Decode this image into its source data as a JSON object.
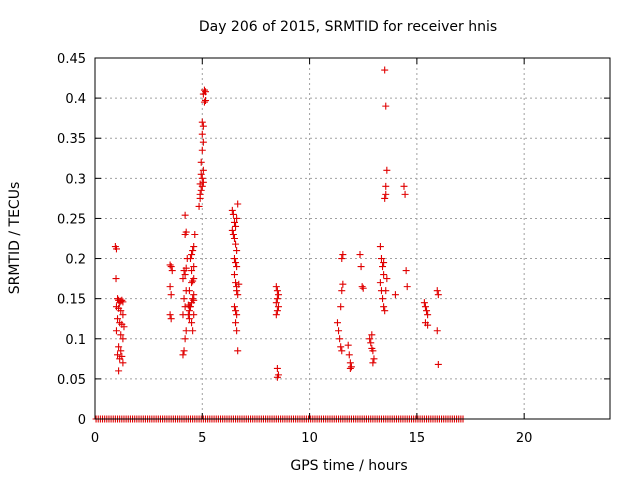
{
  "chart_data": {
    "type": "scatter",
    "title": "Day 206 of 2015, SRMTID for receiver hnis",
    "xlabel": "GPS time / hours",
    "ylabel": "SRMTID / TECUs",
    "xlim": [
      0,
      24
    ],
    "ylim": [
      0,
      0.45
    ],
    "xticks": [
      0,
      5,
      10,
      15,
      20
    ],
    "yticks": [
      0,
      0.05,
      0.1,
      0.15,
      0.2,
      0.25,
      0.3,
      0.35,
      0.4,
      0.45
    ],
    "xtick_labels": [
      "0",
      "5",
      "10",
      "15",
      "20"
    ],
    "ytick_labels": [
      "0",
      "0.05",
      "0.1",
      "0.15",
      "0.2",
      "0.25",
      "0.3",
      "0.35",
      "0.4",
      "0.45"
    ],
    "grid": true,
    "marker": "plus",
    "color": "#e00000",
    "zero_baseline": {
      "x_start": 0.05,
      "x_end": 17.15,
      "step": 0.1,
      "y": 0
    },
    "points": [
      [
        0.95,
        0.215
      ],
      [
        1.0,
        0.212
      ],
      [
        0.98,
        0.175
      ],
      [
        1.05,
        0.15
      ],
      [
        1.1,
        0.148
      ],
      [
        1.2,
        0.147
      ],
      [
        1.15,
        0.145
      ],
      [
        1.25,
        0.148
      ],
      [
        1.3,
        0.146
      ],
      [
        1.0,
        0.14
      ],
      [
        1.1,
        0.138
      ],
      [
        1.2,
        0.135
      ],
      [
        1.3,
        0.13
      ],
      [
        1.05,
        0.125
      ],
      [
        1.15,
        0.12
      ],
      [
        1.25,
        0.118
      ],
      [
        1.35,
        0.115
      ],
      [
        1.0,
        0.11
      ],
      [
        1.2,
        0.105
      ],
      [
        1.3,
        0.1
      ],
      [
        1.1,
        0.09
      ],
      [
        1.2,
        0.085
      ],
      [
        1.05,
        0.08
      ],
      [
        1.25,
        0.078
      ],
      [
        1.15,
        0.075
      ],
      [
        1.3,
        0.07
      ],
      [
        1.1,
        0.06
      ],
      [
        3.5,
        0.192
      ],
      [
        3.55,
        0.19
      ],
      [
        3.6,
        0.185
      ],
      [
        3.5,
        0.165
      ],
      [
        3.55,
        0.155
      ],
      [
        3.5,
        0.13
      ],
      [
        3.55,
        0.125
      ],
      [
        4.1,
        0.08
      ],
      [
        4.15,
        0.085
      ],
      [
        4.2,
        0.1
      ],
      [
        4.25,
        0.11
      ],
      [
        4.1,
        0.13
      ],
      [
        4.2,
        0.14
      ],
      [
        4.15,
        0.15
      ],
      [
        4.25,
        0.16
      ],
      [
        4.1,
        0.175
      ],
      [
        4.2,
        0.18
      ],
      [
        4.15,
        0.185
      ],
      [
        4.25,
        0.188
      ],
      [
        4.3,
        0.2
      ],
      [
        4.2,
        0.23
      ],
      [
        4.25,
        0.233
      ],
      [
        4.2,
        0.254
      ],
      [
        4.35,
        0.13
      ],
      [
        4.4,
        0.135
      ],
      [
        4.45,
        0.14
      ],
      [
        4.5,
        0.145
      ],
      [
        4.55,
        0.15
      ],
      [
        4.6,
        0.155
      ],
      [
        4.4,
        0.16
      ],
      [
        4.5,
        0.17
      ],
      [
        4.55,
        0.172
      ],
      [
        4.6,
        0.175
      ],
      [
        4.45,
        0.2
      ],
      [
        4.5,
        0.205
      ],
      [
        4.55,
        0.21
      ],
      [
        4.6,
        0.215
      ],
      [
        4.4,
        0.125
      ],
      [
        4.6,
        0.13
      ],
      [
        4.5,
        0.12
      ],
      [
        4.55,
        0.11
      ],
      [
        4.35,
        0.142
      ],
      [
        4.6,
        0.148
      ],
      [
        4.65,
        0.23
      ],
      [
        4.5,
        0.185
      ],
      [
        4.6,
        0.19
      ],
      [
        4.4,
        0.14
      ],
      [
        4.85,
        0.265
      ],
      [
        4.9,
        0.275
      ],
      [
        4.95,
        0.285
      ],
      [
        5.0,
        0.29
      ],
      [
        4.9,
        0.293
      ],
      [
        5.0,
        0.3
      ],
      [
        4.95,
        0.305
      ],
      [
        5.05,
        0.31
      ],
      [
        4.95,
        0.32
      ],
      [
        5.0,
        0.335
      ],
      [
        5.05,
        0.345
      ],
      [
        5.0,
        0.355
      ],
      [
        5.05,
        0.365
      ],
      [
        5.0,
        0.37
      ],
      [
        5.1,
        0.395
      ],
      [
        5.15,
        0.397
      ],
      [
        5.05,
        0.405
      ],
      [
        5.1,
        0.41
      ],
      [
        5.15,
        0.408
      ],
      [
        4.9,
        0.28
      ],
      [
        5.05,
        0.295
      ],
      [
        6.4,
        0.26
      ],
      [
        6.45,
        0.255
      ],
      [
        6.5,
        0.245
      ],
      [
        6.55,
        0.24
      ],
      [
        6.6,
        0.25
      ],
      [
        6.65,
        0.268
      ],
      [
        6.4,
        0.235
      ],
      [
        6.45,
        0.23
      ],
      [
        6.5,
        0.225
      ],
      [
        6.55,
        0.218
      ],
      [
        6.6,
        0.21
      ],
      [
        6.5,
        0.2
      ],
      [
        6.55,
        0.195
      ],
      [
        6.6,
        0.19
      ],
      [
        6.5,
        0.18
      ],
      [
        6.55,
        0.17
      ],
      [
        6.6,
        0.165
      ],
      [
        6.7,
        0.168
      ],
      [
        6.5,
        0.14
      ],
      [
        6.55,
        0.135
      ],
      [
        6.6,
        0.13
      ],
      [
        6.55,
        0.12
      ],
      [
        6.6,
        0.11
      ],
      [
        6.65,
        0.085
      ],
      [
        6.6,
        0.16
      ],
      [
        6.65,
        0.155
      ],
      [
        8.45,
        0.165
      ],
      [
        8.5,
        0.16
      ],
      [
        8.55,
        0.155
      ],
      [
        8.5,
        0.15
      ],
      [
        8.45,
        0.145
      ],
      [
        8.55,
        0.14
      ],
      [
        8.5,
        0.135
      ],
      [
        8.45,
        0.13
      ],
      [
        8.5,
        0.063
      ],
      [
        8.55,
        0.055
      ],
      [
        8.5,
        0.052
      ],
      [
        11.3,
        0.12
      ],
      [
        11.35,
        0.11
      ],
      [
        11.4,
        0.1
      ],
      [
        11.45,
        0.09
      ],
      [
        11.5,
        0.085
      ],
      [
        11.45,
        0.14
      ],
      [
        11.5,
        0.16
      ],
      [
        11.55,
        0.168
      ],
      [
        11.5,
        0.2
      ],
      [
        11.55,
        0.205
      ],
      [
        11.8,
        0.092
      ],
      [
        11.85,
        0.08
      ],
      [
        11.9,
        0.07
      ],
      [
        11.95,
        0.065
      ],
      [
        11.9,
        0.063
      ],
      [
        12.35,
        0.205
      ],
      [
        12.4,
        0.19
      ],
      [
        12.45,
        0.165
      ],
      [
        12.5,
        0.163
      ],
      [
        12.8,
        0.1
      ],
      [
        12.85,
        0.095
      ],
      [
        12.9,
        0.088
      ],
      [
        12.95,
        0.085
      ],
      [
        13.0,
        0.075
      ],
      [
        12.95,
        0.07
      ],
      [
        12.9,
        0.105
      ],
      [
        13.3,
        0.215
      ],
      [
        13.35,
        0.2
      ],
      [
        13.4,
        0.19
      ],
      [
        13.45,
        0.18
      ],
      [
        13.3,
        0.17
      ],
      [
        13.35,
        0.16
      ],
      [
        13.4,
        0.15
      ],
      [
        13.45,
        0.14
      ],
      [
        13.5,
        0.135
      ],
      [
        13.55,
        0.28
      ],
      [
        13.5,
        0.275
      ],
      [
        13.55,
        0.29
      ],
      [
        13.6,
        0.31
      ],
      [
        13.55,
        0.39
      ],
      [
        13.5,
        0.435
      ],
      [
        13.45,
        0.195
      ],
      [
        13.6,
        0.175
      ],
      [
        13.55,
        0.16
      ],
      [
        14.0,
        0.155
      ],
      [
        14.4,
        0.29
      ],
      [
        14.45,
        0.28
      ],
      [
        14.5,
        0.185
      ],
      [
        14.55,
        0.165
      ],
      [
        15.4,
        0.14
      ],
      [
        15.45,
        0.135
      ],
      [
        15.5,
        0.13
      ],
      [
        15.4,
        0.12
      ],
      [
        15.5,
        0.117
      ],
      [
        15.35,
        0.145
      ],
      [
        15.95,
        0.16
      ],
      [
        16.0,
        0.155
      ],
      [
        15.95,
        0.11
      ],
      [
        16.0,
        0.068
      ]
    ]
  }
}
